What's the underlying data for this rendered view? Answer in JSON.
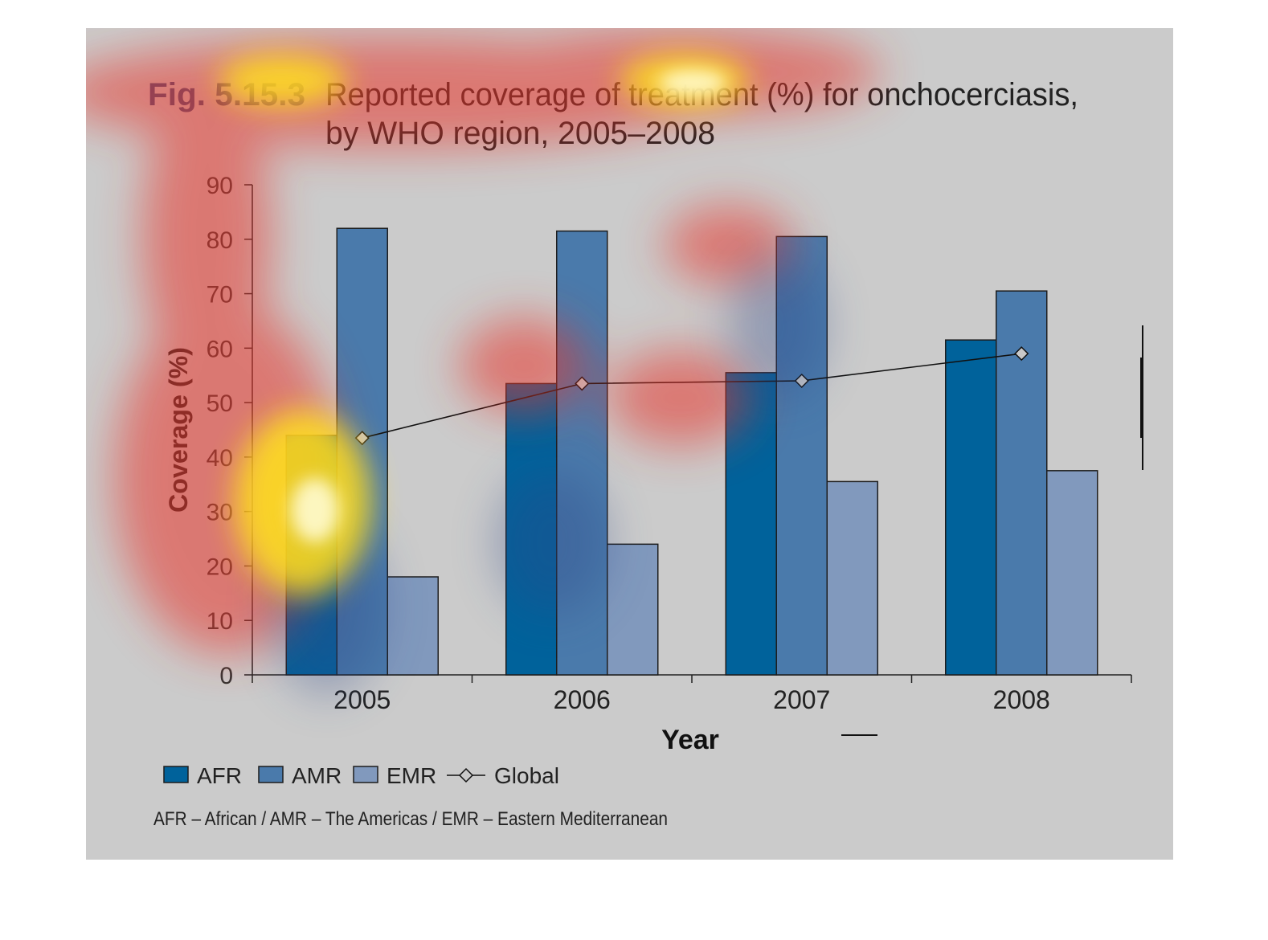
{
  "figure": {
    "fig_label": "Fig. 5.15.3",
    "title_line1": "Reported coverage of treatment (%) for onchocerciasis,",
    "title_line2": "by WHO region, 2005–2008",
    "footnote": "AFR – African / AMR – The Americas / EMR – Eastern Mediterranean"
  },
  "colors": {
    "background": "#cbcbcb",
    "AFR": "#00629b",
    "AMR": "#4a7aab",
    "EMR": "#8199bd",
    "global_marker": "#c9c9c9",
    "fig_label": "#3d4f7c"
  },
  "chart_data": {
    "type": "bar",
    "title": "Reported coverage of treatment (%) for onchocerciasis, by WHO region, 2005–2008",
    "xlabel": "Year",
    "ylabel": "Coverage (%)",
    "categories": [
      "2005",
      "2006",
      "2007",
      "2008"
    ],
    "series": [
      {
        "name": "AFR",
        "type": "bar",
        "values": [
          44,
          53.5,
          55.5,
          61.5
        ]
      },
      {
        "name": "AMR",
        "type": "bar",
        "values": [
          82,
          81.5,
          80.5,
          70.5
        ]
      },
      {
        "name": "EMR",
        "type": "bar",
        "values": [
          18,
          24,
          35.5,
          37.5
        ]
      },
      {
        "name": "Global",
        "type": "line",
        "values": [
          43.5,
          53.5,
          54,
          59
        ]
      }
    ],
    "ylim": [
      0,
      90
    ],
    "yticks": [
      0,
      10,
      20,
      30,
      40,
      50,
      60,
      70,
      80,
      90
    ],
    "grid": false,
    "legend": "bottom-left",
    "overlay": "attention heatmap"
  }
}
